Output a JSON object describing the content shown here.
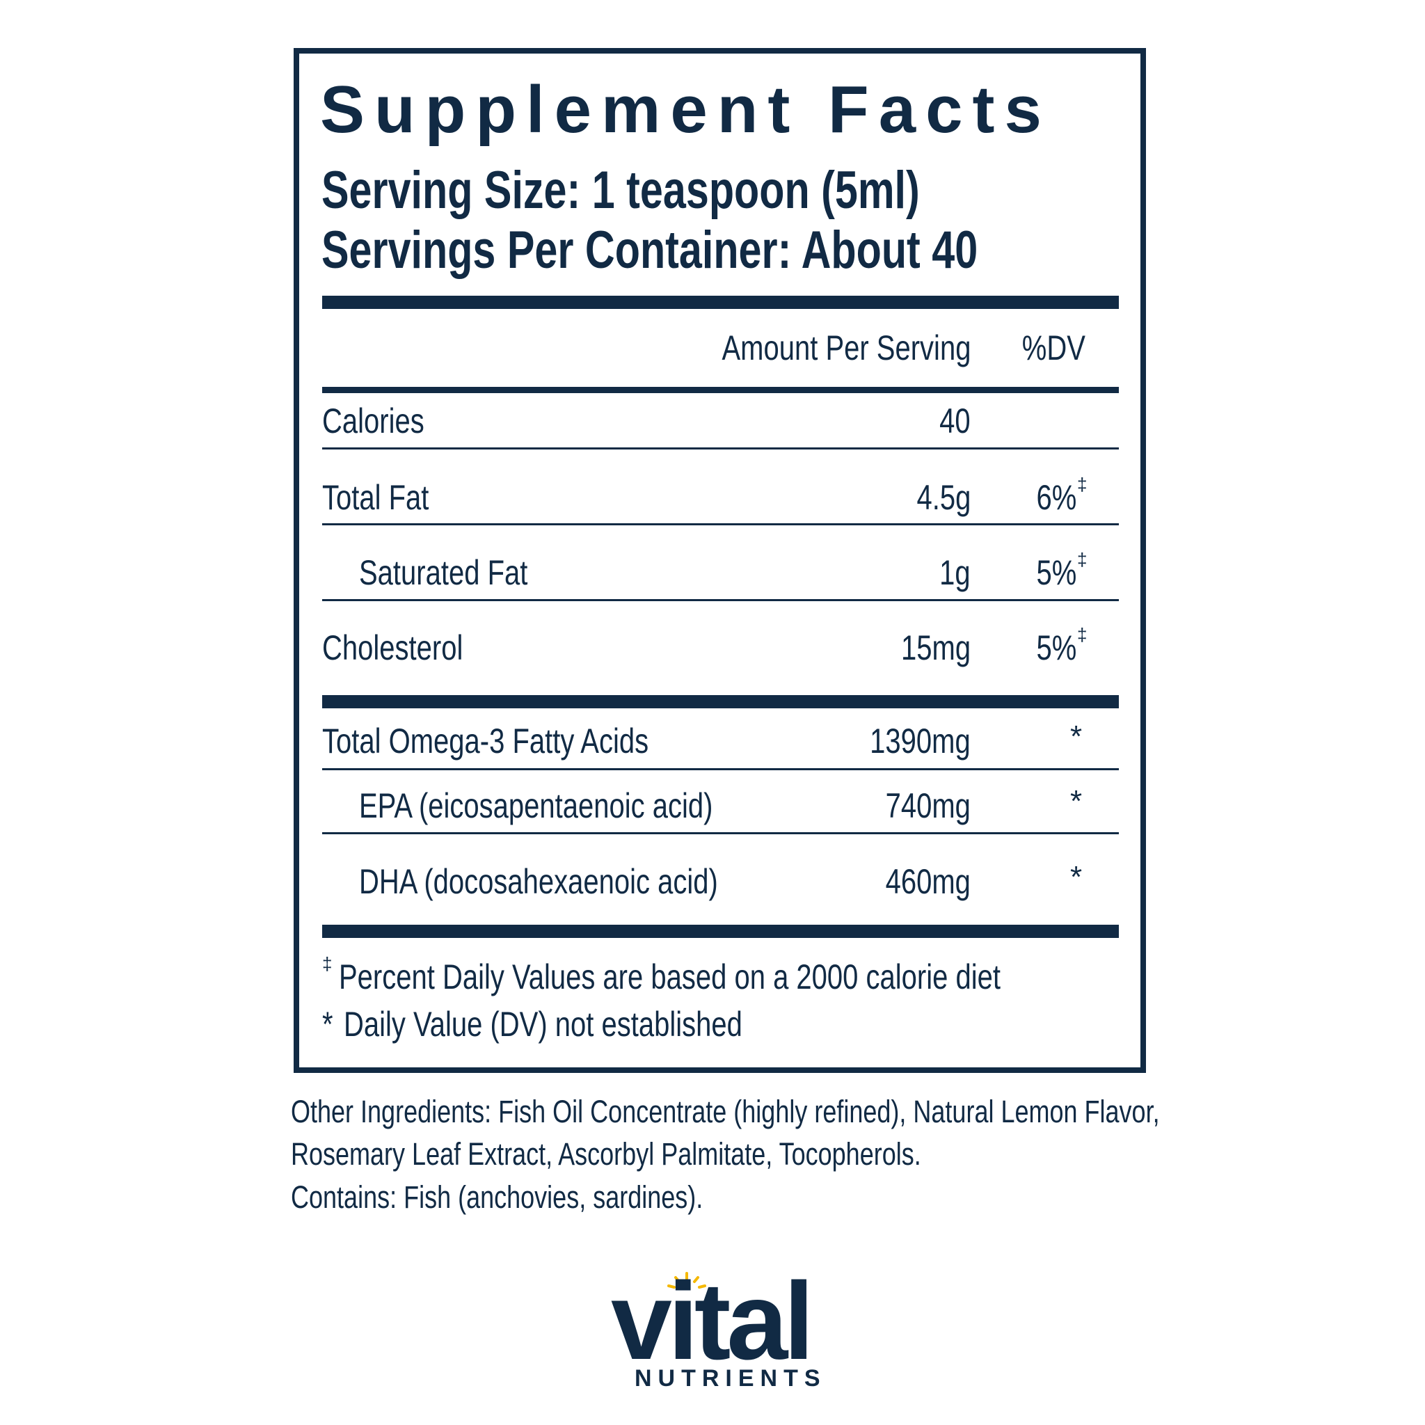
{
  "header": {
    "title": "Supplement Facts",
    "serving_size": "Serving Size: 1 teaspoon (5ml)",
    "servings_per_container": "Servings Per Container: About 40"
  },
  "table": {
    "columns": [
      "Amount Per Serving",
      "%DV"
    ],
    "sections": [
      {
        "rows": [
          {
            "name": "Calories",
            "amount": "40"
          },
          {
            "name": "Total Fat",
            "amount": "4.5g",
            "dv": "6%",
            "note": "‡"
          },
          {
            "name": "Saturated Fat",
            "amount": "1g",
            "dv": "5%",
            "note": "‡",
            "indent": true
          },
          {
            "name": "Cholesterol",
            "amount": "15mg",
            "dv": "5%",
            "note": "‡"
          }
        ]
      },
      {
        "rows": [
          {
            "name": "Total Omega-3 Fatty Acids",
            "amount": "1390mg",
            "note": "*"
          },
          {
            "name": "EPA (eicosapentaenoic acid)",
            "amount": "740mg",
            "note": "*",
            "indent": true
          },
          {
            "name": "DHA (docosahexaenoic acid)",
            "amount": "460mg",
            "note": "*",
            "indent": true
          }
        ]
      }
    ]
  },
  "footnotes": [
    {
      "symbol": "‡",
      "text": "Percent Daily Values are based on a 2000 calorie diet"
    },
    {
      "symbol": "*",
      "text": "Daily Value (DV) not established"
    }
  ],
  "other_ingredients": [
    "Other Ingredients: Fish Oil Concentrate (highly refined), Natural Lemon Flavor,",
    "Rosemary Leaf Extract, Ascorbyl Palmitate, Tocopherols.",
    "Contains: Fish (anchovies, sardines)."
  ],
  "logo": {
    "name": "vital",
    "tagline": "NUTRIENTS"
  }
}
